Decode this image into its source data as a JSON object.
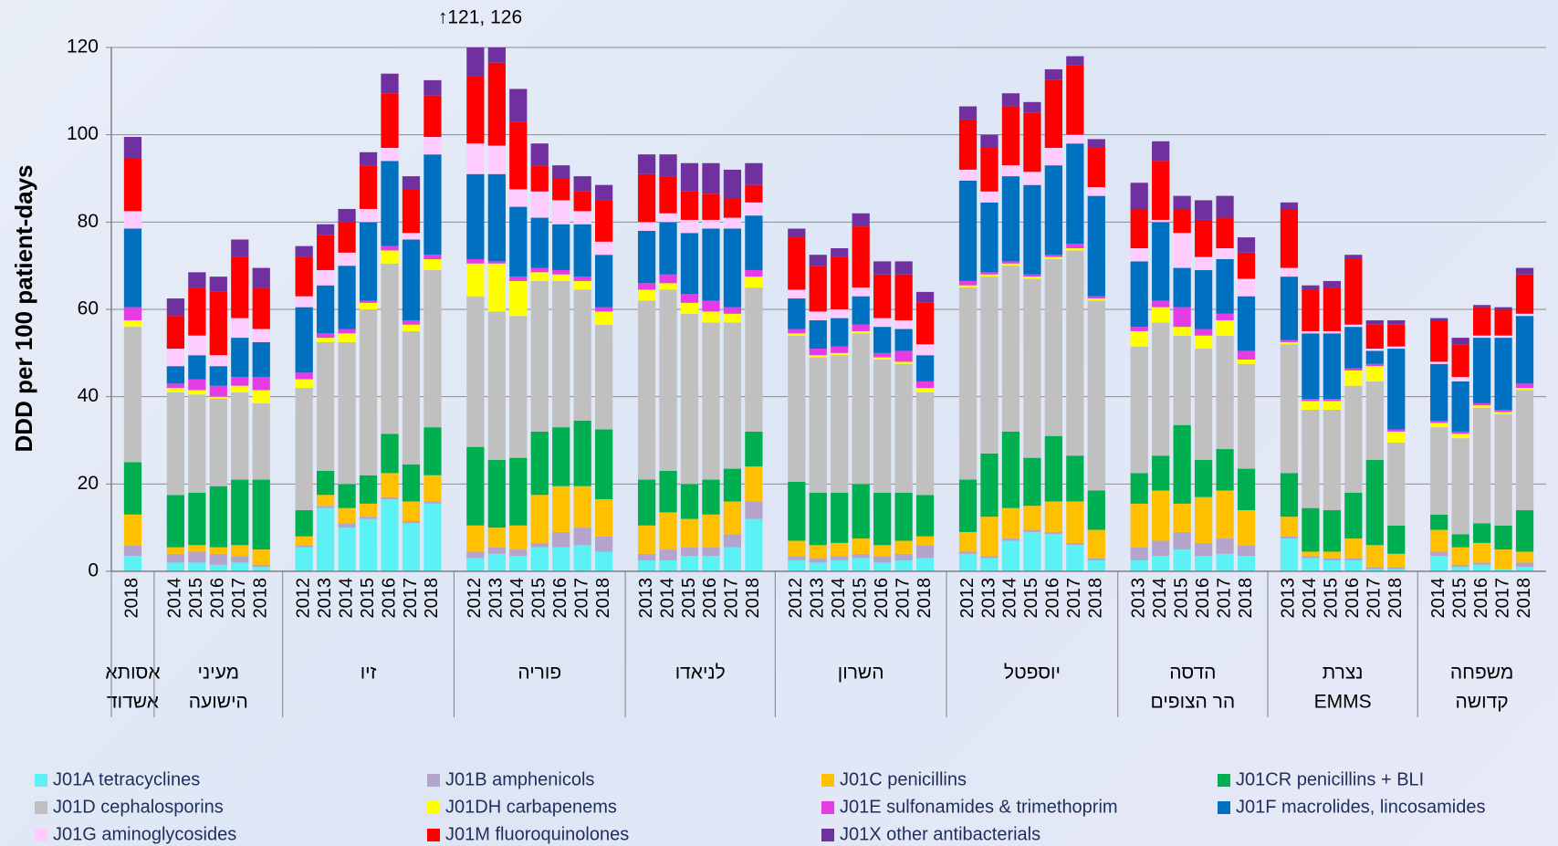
{
  "chart_data": {
    "type": "stacked-bar",
    "ylabel": "DDD per 100 patient-days",
    "annotation": "↑121, 126",
    "ylim": [
      0,
      120
    ],
    "yticks": [
      0,
      20,
      40,
      60,
      80,
      100,
      120
    ],
    "grid": true,
    "legend": "bottom",
    "groups": [
      {
        "label": [
          "אסותא",
          "אשדוד"
        ],
        "categories": [
          "2018"
        ]
      },
      {
        "label": [
          "מעיני",
          "הישועה"
        ],
        "categories": [
          "2014",
          "2015",
          "2016",
          "2017",
          "2018"
        ]
      },
      {
        "label": [
          "זיו"
        ],
        "categories": [
          "2012",
          "2013",
          "2014",
          "2015",
          "2016",
          "2017",
          "2018"
        ]
      },
      {
        "label": [
          "פוריה"
        ],
        "categories": [
          "2012",
          "2013",
          "2014",
          "2015",
          "2016",
          "2017",
          "2018"
        ]
      },
      {
        "label": [
          "לניאדו"
        ],
        "categories": [
          "2013",
          "2014",
          "2015",
          "2016",
          "2017",
          "2018"
        ]
      },
      {
        "label": [
          "השרון"
        ],
        "categories": [
          "2012",
          "2013",
          "2014",
          "2015",
          "2016",
          "2017",
          "2018"
        ]
      },
      {
        "label": [
          "יוספטל"
        ],
        "categories": [
          "2012",
          "2013",
          "2014",
          "2015",
          "2016",
          "2017",
          "2018"
        ]
      },
      {
        "label": [
          "הדסה",
          "הר הצופים"
        ],
        "categories": [
          "2013",
          "2014",
          "2015",
          "2016",
          "2017",
          "2018"
        ]
      },
      {
        "label": [
          "נצרת",
          "EMMS"
        ],
        "categories": [
          "2013",
          "2014",
          "2015",
          "2016",
          "2017",
          "2018"
        ]
      },
      {
        "label": [
          "משפחה",
          "קדושה"
        ],
        "categories": [
          "2014",
          "2015",
          "2016",
          "2017",
          "2018"
        ]
      }
    ],
    "series": [
      {
        "name": "J01A tetracyclines",
        "color": "#5cf2f5",
        "values": [
          3.5,
          2,
          2,
          1.5,
          2,
          1,
          5.5,
          14.5,
          10,
          12,
          16.5,
          11,
          15.5,
          3,
          4,
          3.5,
          5.5,
          5.5,
          6,
          4.5,
          2.5,
          2.5,
          3.5,
          3.5,
          5.5,
          12,
          2.5,
          2,
          2.5,
          3,
          2,
          2.5,
          3,
          4,
          3,
          7,
          9,
          8.5,
          6,
          2.5,
          2.5,
          3.5,
          5,
          3.5,
          4,
          3.5,
          7.5,
          3,
          2.5,
          2.5,
          0.5,
          0.5,
          3.5,
          1,
          1.5,
          0.5,
          1
        ]
      },
      {
        "name": "J01B amphenicols",
        "color": "#b4a4cc",
        "values": [
          2.5,
          2,
          2.5,
          2.5,
          1.5,
          0.5,
          0.5,
          0.5,
          1,
          0.5,
          0.5,
          0.5,
          0.5,
          1.5,
          1.5,
          1.5,
          1,
          3.5,
          4,
          3.5,
          1.5,
          2.5,
          2,
          2,
          3,
          4,
          1,
          1,
          1,
          1,
          1.5,
          1.5,
          3,
          0.5,
          0.5,
          0.5,
          0.5,
          0.5,
          0.5,
          0.5,
          3,
          3.5,
          4,
          3,
          3.5,
          2.5,
          0.5,
          0.5,
          0.5,
          0.5,
          0.5,
          0.5,
          1,
          0.5,
          0.5,
          0,
          1
        ]
      },
      {
        "name": "J01C penicillins",
        "color": "#ffc000",
        "values": [
          7,
          1.5,
          1.5,
          1.5,
          2.5,
          3.5,
          2,
          2.5,
          3.5,
          3,
          5.5,
          4.5,
          6,
          6,
          4.5,
          5.5,
          11,
          10.5,
          9.5,
          8.5,
          6.5,
          8.5,
          6.5,
          7.5,
          7.5,
          8,
          3.5,
          3,
          3,
          3.5,
          2.5,
          3,
          2,
          4.5,
          9,
          7,
          5.5,
          7,
          9.5,
          6.5,
          10,
          11.5,
          6.5,
          10.5,
          11,
          8,
          4.5,
          1,
          1.5,
          4.5,
          5,
          3,
          5,
          4,
          4.5,
          4.5,
          2.5
        ]
      },
      {
        "name": "J01CR penicillins + BLI",
        "color": "#00b050",
        "values": [
          12,
          12,
          12,
          14,
          15,
          16,
          6,
          5.5,
          5.5,
          6.5,
          9,
          8.5,
          11,
          18,
          15.5,
          15.5,
          14.5,
          13.5,
          15,
          16,
          10.5,
          9.5,
          8,
          8,
          7.5,
          8,
          13.5,
          12,
          11.5,
          12.5,
          12,
          11,
          9.5,
          12,
          14.5,
          17.5,
          11,
          15,
          10.5,
          9,
          7,
          8,
          18,
          8.5,
          9.5,
          9.5,
          10,
          10,
          9.5,
          10.5,
          19.5,
          6.5,
          3.5,
          3,
          4.5,
          5.5,
          9.5
        ]
      },
      {
        "name": "J01D cephalosporins",
        "color": "#c0c0c0",
        "values": [
          31,
          23.5,
          22.5,
          20,
          20,
          17.5,
          28,
          29.5,
          32.5,
          38,
          39,
          30.5,
          36,
          34.5,
          34,
          32.5,
          34.5,
          33.5,
          30,
          24,
          41,
          41.5,
          39,
          36,
          33.5,
          33,
          33.5,
          31,
          31.5,
          34.5,
          30.5,
          29.5,
          23.5,
          44,
          40.5,
          38,
          41,
          40.5,
          47,
          43.5,
          29,
          30.5,
          20.5,
          25.5,
          26,
          24,
          29.5,
          22.5,
          23,
          24.5,
          18,
          19,
          20,
          22,
          26.5,
          25.5,
          27.5
        ]
      },
      {
        "name": "J01DH carbapenems",
        "color": "#ffff00",
        "values": [
          1.5,
          1,
          1,
          0.5,
          1.5,
          3,
          2,
          1,
          2,
          1.5,
          3,
          1.5,
          2.5,
          7.5,
          11,
          8,
          2,
          1.5,
          2,
          3,
          2.5,
          1.5,
          2.5,
          2.5,
          2,
          2.5,
          0.5,
          0.5,
          0.5,
          0.5,
          0.5,
          0.5,
          1,
          0.5,
          0.5,
          0.5,
          0.5,
          0.5,
          0.5,
          0.5,
          3.5,
          3.5,
          2,
          3,
          3.5,
          1,
          0.5,
          2,
          2,
          3.5,
          3.5,
          2.5,
          1,
          1,
          0.5,
          0.5,
          0.5
        ]
      },
      {
        "name": "J01E sulfonamides & trimethoprim",
        "color": "#e63ce6",
        "values": [
          3,
          1,
          2.5,
          2.5,
          2,
          3,
          1.5,
          1,
          1,
          0.5,
          1,
          1,
          1,
          1,
          0.5,
          1,
          1,
          1,
          1,
          1,
          1.5,
          2,
          2,
          2.5,
          1.5,
          1.5,
          1,
          1.5,
          1.5,
          1.5,
          1,
          2.5,
          1.5,
          1,
          0.5,
          0.5,
          0.5,
          0.5,
          1,
          0.5,
          1,
          1.5,
          4.5,
          1.5,
          1.5,
          2,
          0.5,
          0.5,
          0.5,
          0.5,
          0.5,
          0.5,
          0.5,
          0.5,
          0.5,
          0.5,
          1
        ]
      },
      {
        "name": "J01F macrolides, lincosamides",
        "color": "#0070c0",
        "values": [
          18,
          4,
          5.5,
          4.5,
          9,
          8,
          15,
          11,
          14.5,
          18,
          19.5,
          18.5,
          23,
          19.5,
          20,
          16,
          11.5,
          10.5,
          12,
          12,
          12,
          12,
          14,
          16.5,
          18,
          12.5,
          7,
          6.5,
          6.5,
          6.5,
          6,
          5,
          6,
          23,
          16,
          19.5,
          20.5,
          20.5,
          23,
          23,
          15,
          18,
          9,
          13.5,
          12.5,
          12.5,
          14.5,
          15,
          15,
          9.5,
          3,
          18.5,
          13,
          11.5,
          15,
          16.5,
          15.5
        ]
      },
      {
        "name": "J01G aminoglycosides",
        "color": "#ffccff",
        "values": [
          4,
          4,
          4.5,
          2.5,
          4.5,
          3,
          2.5,
          3.5,
          3,
          3,
          3,
          1.5,
          4,
          7,
          6.5,
          4,
          6,
          5.5,
          3,
          3,
          2,
          2,
          3,
          2,
          2.5,
          3,
          2,
          2,
          2,
          2,
          2,
          2,
          2.5,
          2.5,
          2.5,
          2.5,
          3,
          4,
          2,
          2,
          3,
          0.5,
          8,
          3,
          2.5,
          4,
          2,
          0.5,
          0.5,
          0.5,
          0.5,
          0.5,
          0.5,
          1,
          0.5,
          0.5,
          0.5
        ]
      },
      {
        "name": "J01M fluoroquinolones",
        "color": "#ff0000",
        "values": [
          12,
          7.5,
          11,
          14.5,
          14,
          9.5,
          9,
          8,
          7,
          10,
          12.5,
          10,
          9.5,
          15.5,
          19,
          15.5,
          6,
          5,
          4.5,
          9.5,
          11,
          8.5,
          6.5,
          6,
          4.5,
          4,
          12,
          10.5,
          12,
          14,
          10,
          10.5,
          9.5,
          11.5,
          10,
          13.5,
          13.5,
          15.5,
          16,
          9,
          9,
          13.5,
          5.5,
          8.5,
          7,
          6,
          13.5,
          9.5,
          10,
          15,
          5.5,
          5,
          9.5,
          7.5,
          6.5,
          6,
          9
        ]
      },
      {
        "name": "J01X other antibacterials",
        "color": "#7030a0",
        "values": [
          5,
          4,
          3.5,
          3.5,
          4,
          4.5,
          2.5,
          2.5,
          3,
          3,
          4.5,
          3,
          3.5,
          7.5,
          9.5,
          7.5,
          5,
          3,
          3.5,
          3.5,
          4.5,
          5,
          6.5,
          7,
          6.5,
          5,
          2,
          2.5,
          2,
          3,
          3,
          3,
          2.5,
          3,
          3,
          3,
          2.5,
          2.5,
          2,
          2,
          6,
          4.5,
          3,
          4.5,
          5,
          3.5,
          1.5,
          1,
          1.5,
          1,
          1,
          1,
          0.5,
          1.5,
          0.5,
          0.5,
          1.5
        ]
      }
    ]
  }
}
